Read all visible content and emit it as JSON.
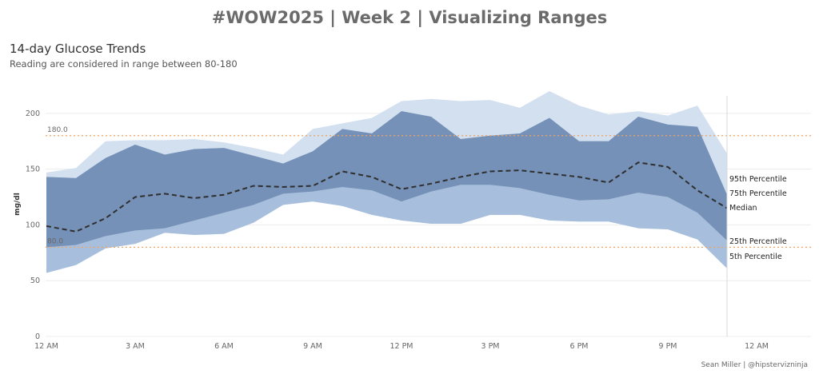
{
  "header": {
    "title": "#WOW2025 | Week 2 | Visualizing Ranges"
  },
  "credit": "Sean Miller | @hipstervizninja",
  "chart_data": {
    "type": "area",
    "title": "14-day Glucose Trends",
    "subtitle": "Reading are considered in range between 80-180",
    "xlabel": "",
    "ylabel": "mg/dl",
    "ylim": [
      0,
      230
    ],
    "y_ticks": [
      0,
      50,
      100,
      150,
      200
    ],
    "x_ticks": [
      "12 AM",
      "3 AM",
      "6 AM",
      "9 AM",
      "12 PM",
      "3 PM",
      "6 PM",
      "9 PM",
      "12 AM"
    ],
    "x_hours": [
      0,
      1,
      2,
      3,
      4,
      5,
      6,
      7,
      8,
      9,
      10,
      11,
      12,
      13,
      14,
      15,
      16,
      17,
      18,
      19,
      20,
      21,
      22,
      23
    ],
    "grid": true,
    "reference_lines": [
      {
        "label": "180.0",
        "value": 180
      },
      {
        "label": "80.0",
        "value": 80
      }
    ],
    "series": [
      {
        "name": "95th Percentile",
        "values": [
          147,
          151,
          175,
          176,
          176,
          177,
          174,
          169,
          163,
          186,
          191,
          196,
          211,
          213,
          211,
          212,
          205,
          220,
          207,
          199,
          202,
          198,
          207,
          164
        ]
      },
      {
        "name": "75th Percentile",
        "values": [
          143,
          142,
          160,
          172,
          163,
          168,
          169,
          162,
          155,
          166,
          186,
          182,
          202,
          197,
          177,
          180,
          182,
          196,
          175,
          175,
          197,
          190,
          188,
          127
        ]
      },
      {
        "name": "Median",
        "values": [
          99,
          94,
          106,
          125,
          128,
          124,
          127,
          135,
          134,
          135,
          148,
          143,
          132,
          137,
          143,
          148,
          149,
          146,
          143,
          138,
          156,
          152,
          131,
          115
        ]
      },
      {
        "name": "25th Percentile",
        "values": [
          80,
          82,
          90,
          95,
          97,
          104,
          111,
          118,
          128,
          130,
          134,
          131,
          121,
          130,
          136,
          136,
          133,
          127,
          122,
          123,
          129,
          125,
          111,
          86
        ]
      },
      {
        "name": "5th Percentile",
        "values": [
          57,
          64,
          79,
          83,
          93,
          91,
          92,
          102,
          118,
          121,
          117,
          109,
          104,
          101,
          101,
          109,
          109,
          104,
          103,
          103,
          97,
          96,
          87,
          61
        ]
      }
    ],
    "band_colors": {
      "outer": "#d3e0f0",
      "middle": "#a7bfdc",
      "inner": "#7591b7",
      "median": "#2f2f2f",
      "reference": "#f0a35e"
    }
  }
}
